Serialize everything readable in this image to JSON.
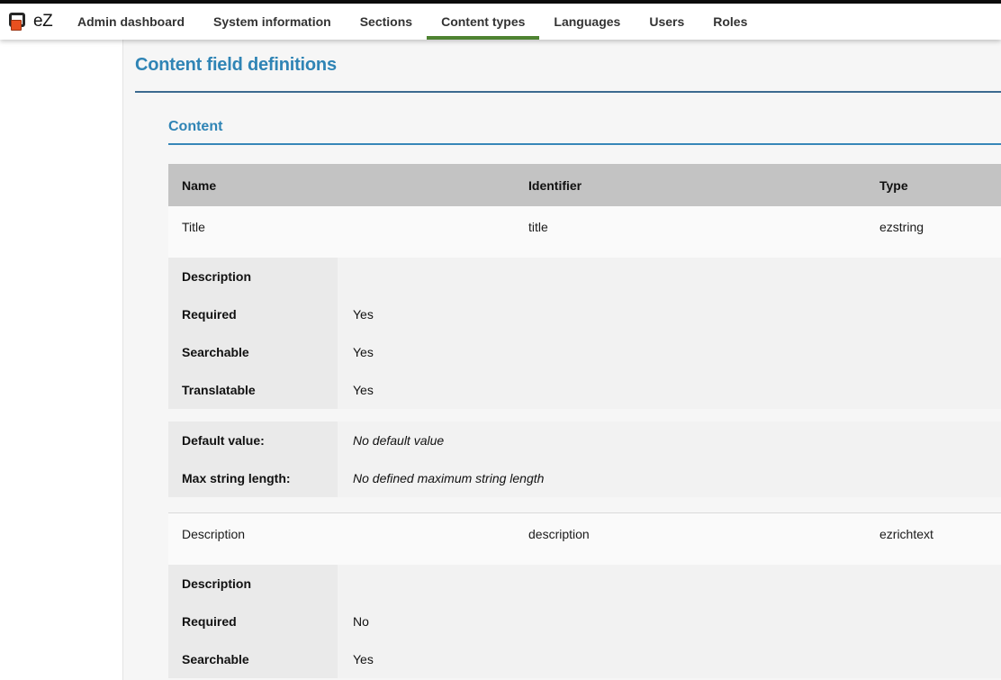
{
  "nav": {
    "logo_text": "eZ",
    "items": [
      {
        "label": "Admin dashboard",
        "active": false
      },
      {
        "label": "System information",
        "active": false
      },
      {
        "label": "Sections",
        "active": false
      },
      {
        "label": "Content types",
        "active": true
      },
      {
        "label": "Languages",
        "active": false
      },
      {
        "label": "Users",
        "active": false
      },
      {
        "label": "Roles",
        "active": false
      }
    ]
  },
  "page": {
    "title": "Content field definitions",
    "section_title": "Content"
  },
  "table": {
    "headers": [
      "Name",
      "Identifier",
      "Type"
    ],
    "fields": [
      {
        "name": "Title",
        "identifier": "title",
        "type": "ezstring",
        "properties": [
          {
            "label": "Description",
            "value": ""
          },
          {
            "label": "Required",
            "value": "Yes"
          },
          {
            "label": "Searchable",
            "value": "Yes"
          },
          {
            "label": "Translatable",
            "value": "Yes"
          }
        ],
        "settings": [
          {
            "label": "Default value:",
            "value": "No default value"
          },
          {
            "label": "Max string length:",
            "value": "No defined maximum string length"
          }
        ]
      },
      {
        "name": "Description",
        "identifier": "description",
        "type": "ezrichtext",
        "properties": [
          {
            "label": "Description",
            "value": ""
          },
          {
            "label": "Required",
            "value": "No"
          },
          {
            "label": "Searchable",
            "value": "Yes"
          }
        ]
      }
    ]
  },
  "colors": {
    "heading_blue": "#2f84b5",
    "nav_active_green": "#4e8331",
    "logo_orange": "#e8501f",
    "table_header_gray": "#c3c3c3",
    "top_strip_black": "#0c0c0c"
  }
}
